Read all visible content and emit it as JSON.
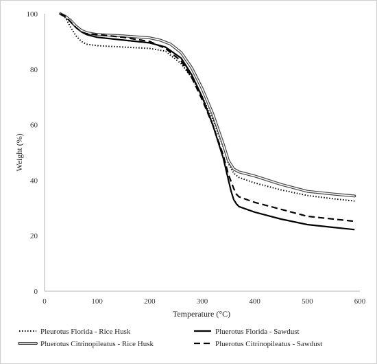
{
  "chart_data": {
    "type": "line",
    "xlabel": "Temperature (°C)",
    "ylabel": "Weight (%)",
    "xlim": [
      0,
      600
    ],
    "ylim": [
      0,
      100
    ],
    "xticks": [
      0,
      100,
      200,
      300,
      400,
      500,
      600
    ],
    "yticks": [
      0,
      20,
      40,
      60,
      80,
      100
    ],
    "grid": false,
    "legend_position": "bottom",
    "series": [
      {
        "name": "Pleurotus Florida - Rice Husk",
        "style": "dotted",
        "x": [
          30,
          40,
          50,
          60,
          70,
          80,
          100,
          150,
          200,
          230,
          260,
          280,
          300,
          320,
          340,
          350,
          360,
          370,
          400,
          450,
          500,
          550,
          590
        ],
        "y": [
          100,
          98.5,
          95,
          92,
          90,
          89,
          88.5,
          88,
          87.5,
          86.5,
          82,
          77,
          70,
          62,
          52,
          46,
          42.5,
          41,
          39,
          36.5,
          34.5,
          33.3,
          32.5
        ]
      },
      {
        "name": "Pluerotus Florida - Sawdust",
        "style": "solid",
        "x": [
          30,
          40,
          50,
          60,
          70,
          80,
          100,
          150,
          200,
          230,
          260,
          280,
          300,
          320,
          340,
          350,
          355,
          360,
          365,
          370,
          400,
          450,
          500,
          550,
          590
        ],
        "y": [
          100,
          99,
          97,
          95,
          93.5,
          92.5,
          91.5,
          90.5,
          89.5,
          88,
          84,
          78,
          70,
          60,
          48,
          40,
          36,
          33,
          31.5,
          30.5,
          28.5,
          26,
          24,
          23,
          22.2
        ]
      },
      {
        "name": "Pluerotus Citrinopileatus - Rice Husk",
        "style": "double",
        "x": [
          30,
          40,
          50,
          60,
          70,
          80,
          100,
          150,
          200,
          220,
          240,
          260,
          280,
          300,
          320,
          340,
          350,
          360,
          370,
          400,
          450,
          500,
          550,
          590
        ],
        "y": [
          100,
          99,
          97.5,
          95.5,
          94,
          93.2,
          92.5,
          92,
          91.3,
          90.5,
          89,
          86,
          80.5,
          73,
          64,
          53,
          47,
          44,
          43,
          41.5,
          38.5,
          36,
          35,
          34.3
        ]
      },
      {
        "name": "Pluerotus Citrinopileatus - Sawdust",
        "style": "dashed",
        "x": [
          30,
          40,
          50,
          60,
          70,
          80,
          100,
          150,
          200,
          230,
          260,
          280,
          300,
          320,
          340,
          350,
          360,
          365,
          370,
          400,
          450,
          500,
          550,
          590
        ],
        "y": [
          100,
          99,
          97,
          95,
          93.5,
          92.8,
          92.5,
          91.5,
          90,
          87.5,
          83,
          77,
          69,
          60,
          49,
          42,
          37,
          35,
          34,
          32,
          29.5,
          27,
          26,
          25.2
        ]
      }
    ]
  }
}
